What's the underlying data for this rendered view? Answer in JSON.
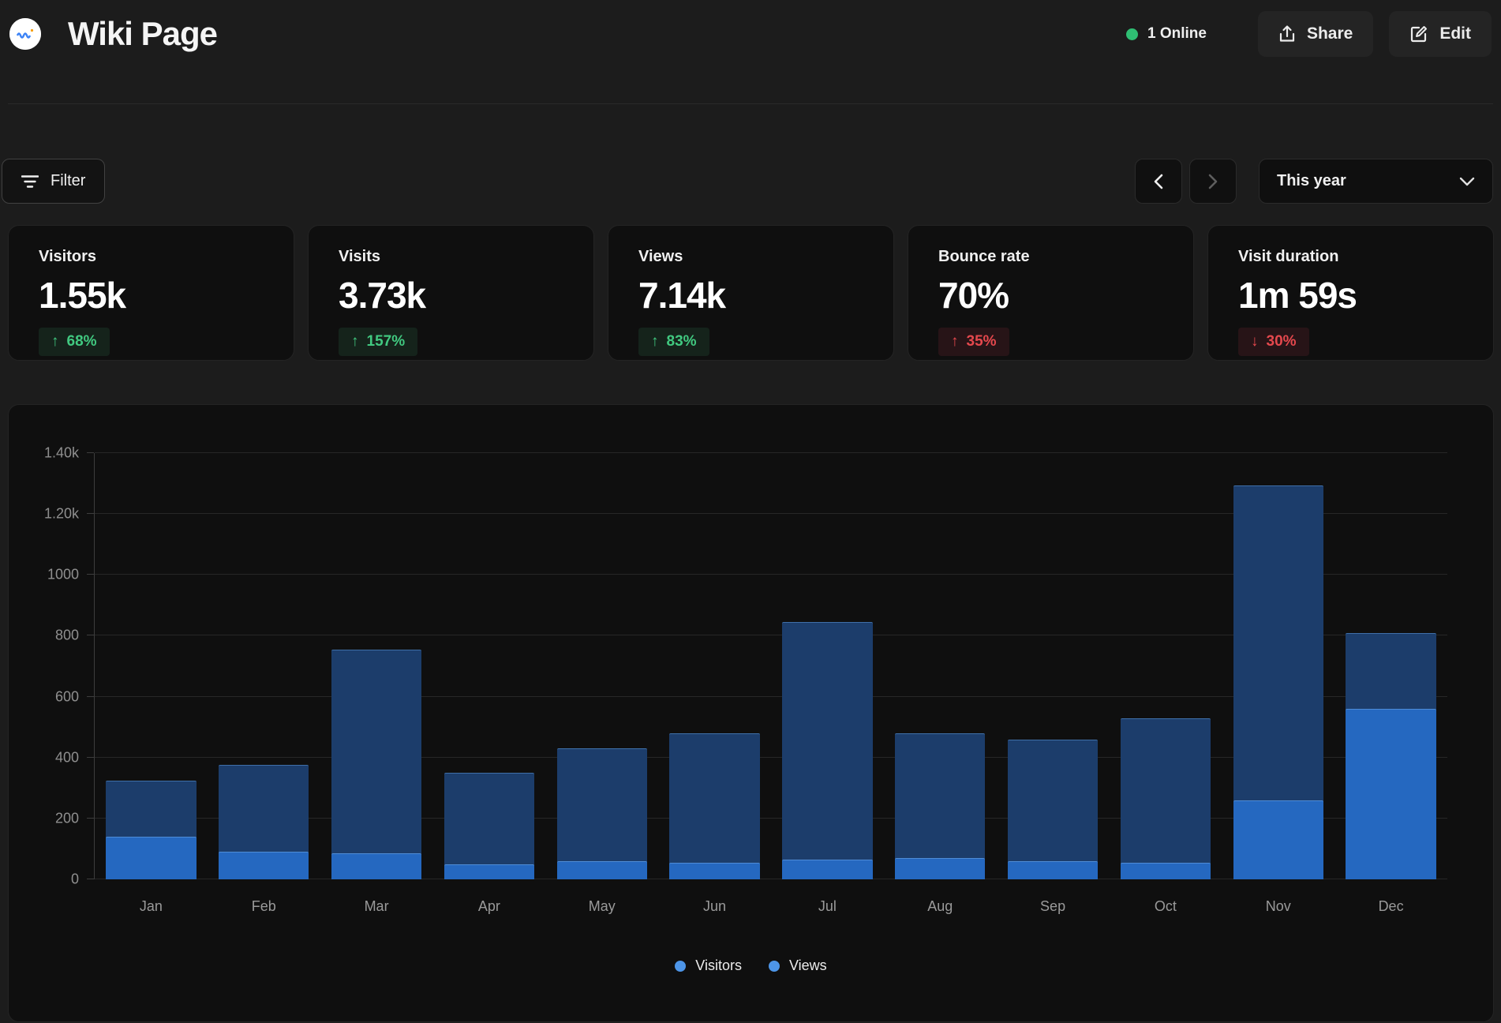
{
  "header": {
    "title": "Wiki Page",
    "online_status": "1 Online",
    "share_label": "Share",
    "edit_label": "Edit"
  },
  "toolbar": {
    "filter_label": "Filter",
    "period_label": "This year"
  },
  "stats": [
    {
      "label": "Visitors",
      "value": "1.55k",
      "arrow": "↑",
      "change": "68%",
      "trend": "positive"
    },
    {
      "label": "Visits",
      "value": "3.73k",
      "arrow": "↑",
      "change": "157%",
      "trend": "positive"
    },
    {
      "label": "Views",
      "value": "7.14k",
      "arrow": "↑",
      "change": "83%",
      "trend": "positive"
    },
    {
      "label": "Bounce rate",
      "value": "70%",
      "arrow": "↑",
      "change": "35%",
      "trend": "negative"
    },
    {
      "label": "Visit duration",
      "value": "1m 59s",
      "arrow": "↓",
      "change": "30%",
      "trend": "negative"
    }
  ],
  "chart_data": {
    "type": "bar",
    "mode": "overlay",
    "title": "",
    "xlabel": "",
    "ylabel": "",
    "ylim": [
      0,
      1400
    ],
    "grid": true,
    "legend_position": "bottom",
    "categories": [
      "Jan",
      "Feb",
      "Mar",
      "Apr",
      "May",
      "Jun",
      "Jul",
      "Aug",
      "Sep",
      "Oct",
      "Nov",
      "Dec"
    ],
    "series": [
      {
        "name": "Views",
        "color": "#1c3d6b",
        "values": [
          325,
          375,
          755,
          350,
          430,
          480,
          845,
          480,
          460,
          530,
          1295,
          810
        ]
      },
      {
        "name": "Visitors",
        "color": "#2568c0",
        "values": [
          140,
          90,
          85,
          50,
          60,
          55,
          65,
          70,
          60,
          55,
          260,
          560
        ]
      }
    ],
    "yticks": [
      {
        "value": 0,
        "label": "0"
      },
      {
        "value": 200,
        "label": "200"
      },
      {
        "value": 400,
        "label": "400"
      },
      {
        "value": 600,
        "label": "600"
      },
      {
        "value": 800,
        "label": "800"
      },
      {
        "value": 1000,
        "label": "1000"
      },
      {
        "value": 1200,
        "label": "1.20k"
      },
      {
        "value": 1400,
        "label": "1.40k"
      }
    ],
    "legend": [
      {
        "label": "Visitors",
        "dot_color": "#4d95e8"
      },
      {
        "label": "Views",
        "dot_color": "#4d95e8"
      }
    ]
  },
  "colors": {
    "page_bg": "#1c1c1c",
    "card_bg": "#0f0f0f",
    "card_border": "#242424",
    "accent_green": "#2fbe73",
    "badge_green_text": "#41c980",
    "badge_red_text": "#e5484d",
    "bar_visitors": "#2568c0",
    "bar_views": "#1c3d6b"
  }
}
